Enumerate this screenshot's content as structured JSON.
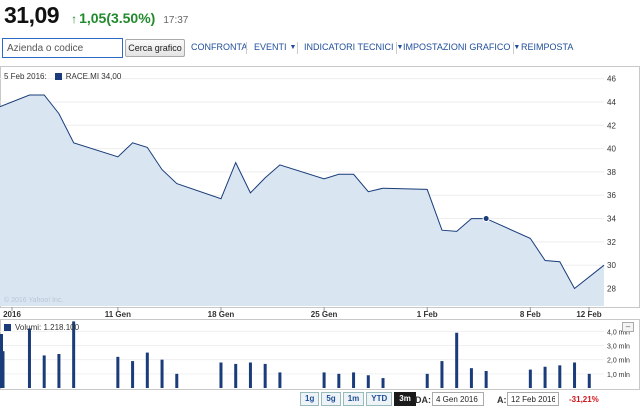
{
  "quote": {
    "price": "31,09",
    "change": "1,05",
    "change_pct": "(3.50%)",
    "time": "17:37",
    "up_color": "#218a2c"
  },
  "toolbar": {
    "search_placeholder": "Azienda o codice",
    "chart_button": "Cerca grafico",
    "menus": [
      "CONFRONTA",
      "EVENTI",
      "INDICATORI TECNICI",
      "IMPOSTAZIONI GRAFICO",
      "REIMPOSTA"
    ]
  },
  "legend": {
    "date": "5 Feb 2016:",
    "series": "RACE.MI 34,00"
  },
  "watermark": "© 2016 Yahoo! Inc.",
  "volume_legend": "Volumi: 1.218.100",
  "ranges": [
    "1g",
    "5g",
    "1m",
    "YTD",
    "3m"
  ],
  "active_range": "3m",
  "dates": {
    "from_label": "DA:",
    "from_value": "4 Gen 2016",
    "to_label": "A:",
    "to_value": "12 Feb 2016",
    "change": "-31,21%"
  },
  "chart_data": [
    {
      "type": "area",
      "x": [
        "2016-01-04",
        "2016-01-05",
        "2016-01-06",
        "2016-01-07",
        "2016-01-08",
        "2016-01-11",
        "2016-01-12",
        "2016-01-13",
        "2016-01-14",
        "2016-01-15",
        "2016-01-18",
        "2016-01-19",
        "2016-01-20",
        "2016-01-21",
        "2016-01-22",
        "2016-01-25",
        "2016-01-26",
        "2016-01-27",
        "2016-01-28",
        "2016-01-29",
        "2016-02-01",
        "2016-02-02",
        "2016-02-03",
        "2016-02-04",
        "2016-02-05",
        "2016-02-08",
        "2016-02-09",
        "2016-02-10",
        "2016-02-11",
        "2016-02-12"
      ],
      "y": [
        43.6,
        44.6,
        44.6,
        43.0,
        40.5,
        39.3,
        40.5,
        40.1,
        38.2,
        37.0,
        35.7,
        38.8,
        36.2,
        37.5,
        38.6,
        37.4,
        37.8,
        37.8,
        36.3,
        36.6,
        36.5,
        33.0,
        32.9,
        34.0,
        34.0,
        32.3,
        30.4,
        30.3,
        28.0,
        30.0
      ],
      "x_ticks": [
        "2016",
        "11 Gen",
        "18 Gen",
        "25 Gen",
        "1 Feb",
        "8 Feb",
        "12 Feb"
      ],
      "y_ticks": [
        "28",
        "30",
        "32",
        "34",
        "36",
        "38",
        "40",
        "42",
        "44",
        "46"
      ],
      "ylim": [
        26.5,
        47
      ],
      "highlight": {
        "x": "2016-02-05",
        "y": 34.0
      },
      "color": "#1a3c7a",
      "fill": "#d9e6f2"
    },
    {
      "type": "bar",
      "x": [
        "2016-01-04",
        "2016-01-05",
        "2016-01-06",
        "2016-01-07",
        "2016-01-08",
        "2016-01-11",
        "2016-01-12",
        "2016-01-13",
        "2016-01-14",
        "2016-01-15",
        "2016-01-18",
        "2016-01-19",
        "2016-01-20",
        "2016-01-21",
        "2016-01-22",
        "2016-01-25",
        "2016-01-26",
        "2016-01-27",
        "2016-01-28",
        "2016-01-29",
        "2016-02-01",
        "2016-02-02",
        "2016-02-03",
        "2016-02-04",
        "2016-02-05",
        "2016-02-08",
        "2016-02-09",
        "2016-02-10",
        "2016-02-11",
        "2016-02-12"
      ],
      "values": [
        2.6,
        4.2,
        2.3,
        2.4,
        4.7,
        2.2,
        1.9,
        2.5,
        2.0,
        1.0,
        1.8,
        1.7,
        1.8,
        1.7,
        1.1,
        1.1,
        1.0,
        1.1,
        0.9,
        0.7,
        1.0,
        1.9,
        3.9,
        1.4,
        1.2,
        1.3,
        1.5,
        1.6,
        1.8,
        1.0
      ],
      "y_ticks": [
        "1,0 mln",
        "2,0 mln",
        "3,0 mln",
        "4,0 mln"
      ],
      "ylim": [
        0,
        4.8
      ],
      "color": "#1a3c7a"
    }
  ]
}
